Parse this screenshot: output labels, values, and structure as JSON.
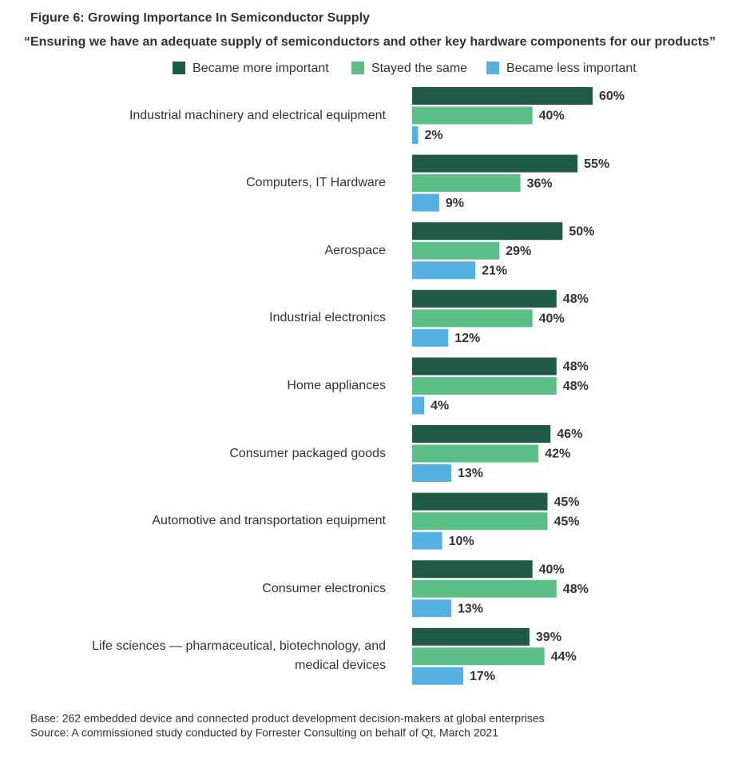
{
  "chart_data": {
    "type": "grouped-bar-horizontal",
    "title": "Figure 6: Growing Importance In Semiconductor Supply",
    "subtitle": "“Ensuring we have an adequate supply of semiconductors and other key hardware components for our products”",
    "categories": [
      "Industrial machinery and electrical equipment",
      "Computers, IT Hardware",
      "Aerospace",
      "Industrial electronics",
      "Home appliances",
      "Consumer packaged goods",
      "Automotive and transportation equipment",
      "Consumer electronics",
      "Life sciences — pharmaceutical, biotechnology, and medical devices"
    ],
    "series": [
      {
        "name": "Became more important",
        "color": "#1f5a45",
        "values": [
          60,
          55,
          50,
          48,
          48,
          46,
          45,
          40,
          39
        ],
        "value_labels": [
          "60%",
          "55%",
          "50%",
          "48%",
          "48%",
          "46%",
          "45%",
          "40%",
          "39%"
        ]
      },
      {
        "name": "Stayed the same",
        "color": "#5dbf88",
        "values": [
          40,
          36,
          29,
          40,
          48,
          42,
          45,
          48,
          44
        ],
        "value_labels": [
          "40%",
          "36%",
          "29%",
          "40%",
          "48%",
          "42%",
          "45%",
          "48%",
          "44%"
        ]
      },
      {
        "name": "Became less important",
        "color": "#55b1e2",
        "values": [
          2,
          9,
          21,
          12,
          4,
          13,
          10,
          13,
          17
        ],
        "value_labels": [
          "2%",
          "9%",
          "21%",
          "12%",
          "4%",
          "13%",
          "10%",
          "13%",
          "17%"
        ]
      }
    ],
    "legend": "top",
    "notes": [
      "Base: 262 embedded device and connected product development decision-makers at global enterprises",
      "Source: A commissioned study conducted by Forrester Consulting on behalf of Qt, March 2021"
    ]
  }
}
